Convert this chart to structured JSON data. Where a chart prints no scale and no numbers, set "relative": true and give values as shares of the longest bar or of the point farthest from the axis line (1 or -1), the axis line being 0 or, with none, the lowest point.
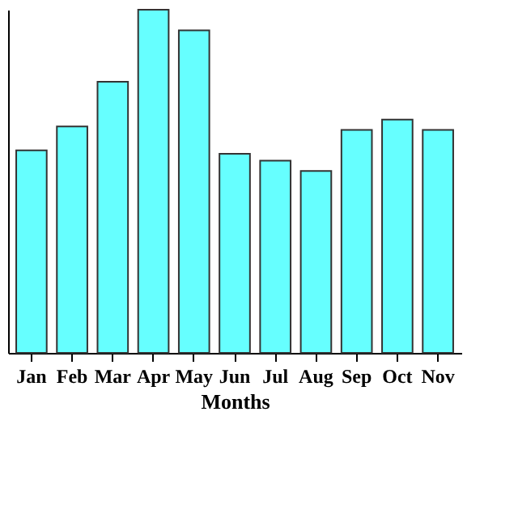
{
  "chart_data": {
    "type": "bar",
    "xlabel": "Months",
    "relative": true,
    "color": "#66ffff",
    "categories": [
      "Jan",
      "Feb",
      "Mar",
      "Apr",
      "May",
      "Jun",
      "Jul",
      "Aug",
      "Sep",
      "Oct",
      "Nov"
    ],
    "values": [
      0.59,
      0.66,
      0.79,
      1,
      0.94,
      0.58,
      0.56,
      0.53,
      0.65,
      0.68,
      0.65
    ]
  }
}
